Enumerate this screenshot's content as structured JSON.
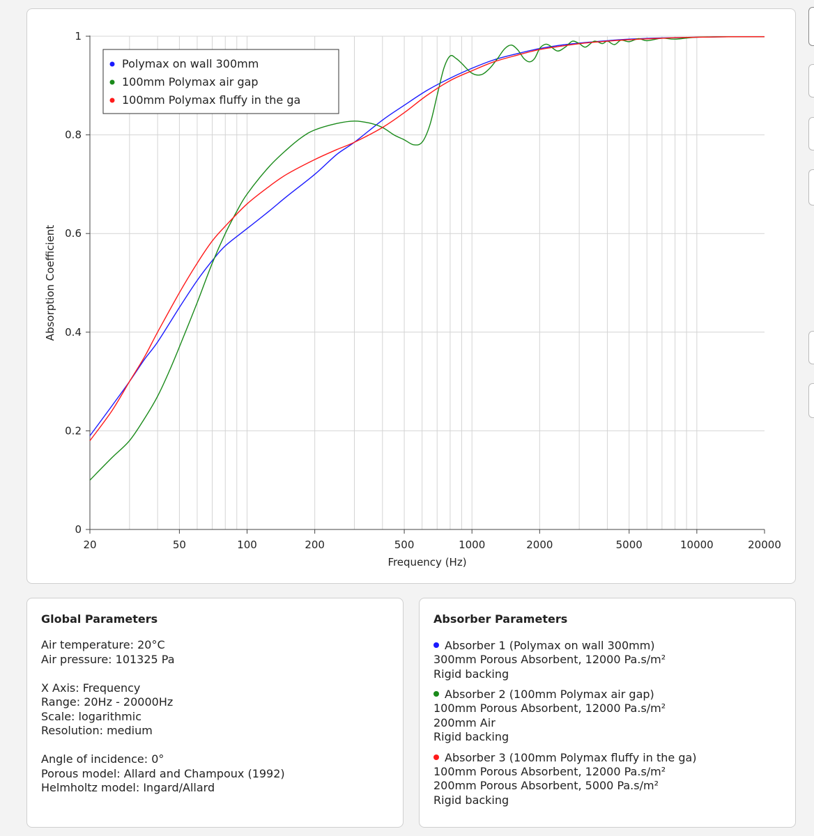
{
  "chart_data": {
    "type": "line",
    "xlabel": "Frequency (Hz)",
    "ylabel": "Absorption Coefficient",
    "xscale": "log",
    "xlim": [
      20,
      20000
    ],
    "ylim": [
      0,
      1
    ],
    "x_ticks": [
      "20",
      "50",
      "100",
      "200",
      "500",
      "1000",
      "2000",
      "5000",
      "10000",
      "20000"
    ],
    "y_ticks": [
      "0",
      "0.2",
      "0.4",
      "0.6",
      "0.8",
      "1"
    ],
    "grid": true,
    "legend_position": "top-left",
    "series": [
      {
        "name": "Polymax on wall 300mm",
        "color": "#1a1aff",
        "points": [
          [
            20,
            0.19
          ],
          [
            25,
            0.25
          ],
          [
            30,
            0.3
          ],
          [
            35,
            0.345
          ],
          [
            40,
            0.38
          ],
          [
            50,
            0.45
          ],
          [
            60,
            0.505
          ],
          [
            70,
            0.545
          ],
          [
            80,
            0.575
          ],
          [
            100,
            0.61
          ],
          [
            125,
            0.645
          ],
          [
            150,
            0.675
          ],
          [
            200,
            0.72
          ],
          [
            250,
            0.76
          ],
          [
            300,
            0.785
          ],
          [
            400,
            0.83
          ],
          [
            500,
            0.86
          ],
          [
            630,
            0.89
          ],
          [
            800,
            0.915
          ],
          [
            1000,
            0.935
          ],
          [
            1250,
            0.952
          ],
          [
            1600,
            0.965
          ],
          [
            2000,
            0.975
          ],
          [
            2500,
            0.982
          ],
          [
            3150,
            0.987
          ],
          [
            4000,
            0.991
          ],
          [
            5000,
            0.994
          ],
          [
            6300,
            0.996
          ],
          [
            8000,
            0.997
          ],
          [
            10000,
            0.998
          ],
          [
            15000,
            0.999
          ],
          [
            20000,
            0.999
          ]
        ]
      },
      {
        "name": "100mm Polymax air gap",
        "color": "#1a8a1a",
        "points": [
          [
            20,
            0.1
          ],
          [
            25,
            0.145
          ],
          [
            30,
            0.18
          ],
          [
            35,
            0.225
          ],
          [
            40,
            0.27
          ],
          [
            45,
            0.32
          ],
          [
            50,
            0.37
          ],
          [
            60,
            0.46
          ],
          [
            70,
            0.54
          ],
          [
            80,
            0.6
          ],
          [
            90,
            0.645
          ],
          [
            100,
            0.68
          ],
          [
            125,
            0.735
          ],
          [
            150,
            0.77
          ],
          [
            175,
            0.795
          ],
          [
            200,
            0.81
          ],
          [
            250,
            0.823
          ],
          [
            300,
            0.828
          ],
          [
            350,
            0.824
          ],
          [
            400,
            0.815
          ],
          [
            450,
            0.8
          ],
          [
            500,
            0.79
          ],
          [
            550,
            0.78
          ],
          [
            600,
            0.785
          ],
          [
            650,
            0.82
          ],
          [
            700,
            0.88
          ],
          [
            750,
            0.935
          ],
          [
            800,
            0.96
          ],
          [
            850,
            0.955
          ],
          [
            900,
            0.945
          ],
          [
            1000,
            0.925
          ],
          [
            1100,
            0.922
          ],
          [
            1200,
            0.935
          ],
          [
            1300,
            0.955
          ],
          [
            1400,
            0.975
          ],
          [
            1500,
            0.982
          ],
          [
            1600,
            0.972
          ],
          [
            1700,
            0.955
          ],
          [
            1800,
            0.948
          ],
          [
            1900,
            0.955
          ],
          [
            2000,
            0.975
          ],
          [
            2100,
            0.983
          ],
          [
            2200,
            0.982
          ],
          [
            2400,
            0.97
          ],
          [
            2600,
            0.978
          ],
          [
            2800,
            0.99
          ],
          [
            3000,
            0.985
          ],
          [
            3200,
            0.978
          ],
          [
            3500,
            0.99
          ],
          [
            3800,
            0.985
          ],
          [
            4000,
            0.99
          ],
          [
            4300,
            0.983
          ],
          [
            4600,
            0.992
          ],
          [
            5000,
            0.989
          ],
          [
            5500,
            0.995
          ],
          [
            6000,
            0.991
          ],
          [
            7000,
            0.996
          ],
          [
            8000,
            0.994
          ],
          [
            10000,
            0.998
          ],
          [
            15000,
            0.999
          ],
          [
            20000,
            0.999
          ]
        ]
      },
      {
        "name": "100mm Polymax fluffy in the ga",
        "color": "#ff1a1a",
        "points": [
          [
            20,
            0.18
          ],
          [
            25,
            0.24
          ],
          [
            30,
            0.3
          ],
          [
            35,
            0.35
          ],
          [
            40,
            0.4
          ],
          [
            50,
            0.48
          ],
          [
            60,
            0.54
          ],
          [
            70,
            0.585
          ],
          [
            80,
            0.615
          ],
          [
            100,
            0.66
          ],
          [
            125,
            0.695
          ],
          [
            150,
            0.72
          ],
          [
            200,
            0.75
          ],
          [
            250,
            0.77
          ],
          [
            300,
            0.785
          ],
          [
            400,
            0.815
          ],
          [
            500,
            0.845
          ],
          [
            630,
            0.88
          ],
          [
            800,
            0.91
          ],
          [
            1000,
            0.93
          ],
          [
            1250,
            0.948
          ],
          [
            1600,
            0.962
          ],
          [
            2000,
            0.973
          ],
          [
            2500,
            0.98
          ],
          [
            3150,
            0.986
          ],
          [
            4000,
            0.99
          ],
          [
            5000,
            0.993
          ],
          [
            6300,
            0.995
          ],
          [
            8000,
            0.997
          ],
          [
            10000,
            0.998
          ],
          [
            15000,
            0.999
          ],
          [
            20000,
            0.999
          ]
        ]
      }
    ]
  },
  "global_params": {
    "title": "Global Parameters",
    "air_temperature": "Air temperature: 20°C",
    "air_pressure": "Air pressure: 101325 Pa",
    "x_axis": "X Axis: Frequency",
    "range": "Range: 20Hz - 20000Hz",
    "scale": "Scale: logarithmic",
    "resolution": "Resolution: medium",
    "angle": "Angle of incidence: 0°",
    "porous_model": "Porous model: Allard and Champoux (1992)",
    "helmholtz_model": "Helmholtz model: Ingard/Allard"
  },
  "absorber_params": {
    "title": "Absorber Parameters",
    "absorbers": [
      {
        "header": "Absorber 1 (Polymax on wall 300mm)",
        "color": "#1a1aff",
        "layers": [
          "300mm Porous Absorbent, 12000 Pa.s/m²",
          "Rigid backing"
        ]
      },
      {
        "header": "Absorber 2 (100mm Polymax air gap)",
        "color": "#1a8a1a",
        "layers": [
          "100mm Porous Absorbent, 12000 Pa.s/m²",
          "200mm Air",
          "Rigid backing"
        ]
      },
      {
        "header": "Absorber 3 (100mm Polymax fluffy in the ga)",
        "color": "#ff1a1a",
        "layers": [
          "100mm Porous Absorbent, 12000 Pa.s/m²",
          "200mm Porous Absorbent, 5000 Pa.s/m²",
          "Rigid backing"
        ]
      }
    ]
  }
}
